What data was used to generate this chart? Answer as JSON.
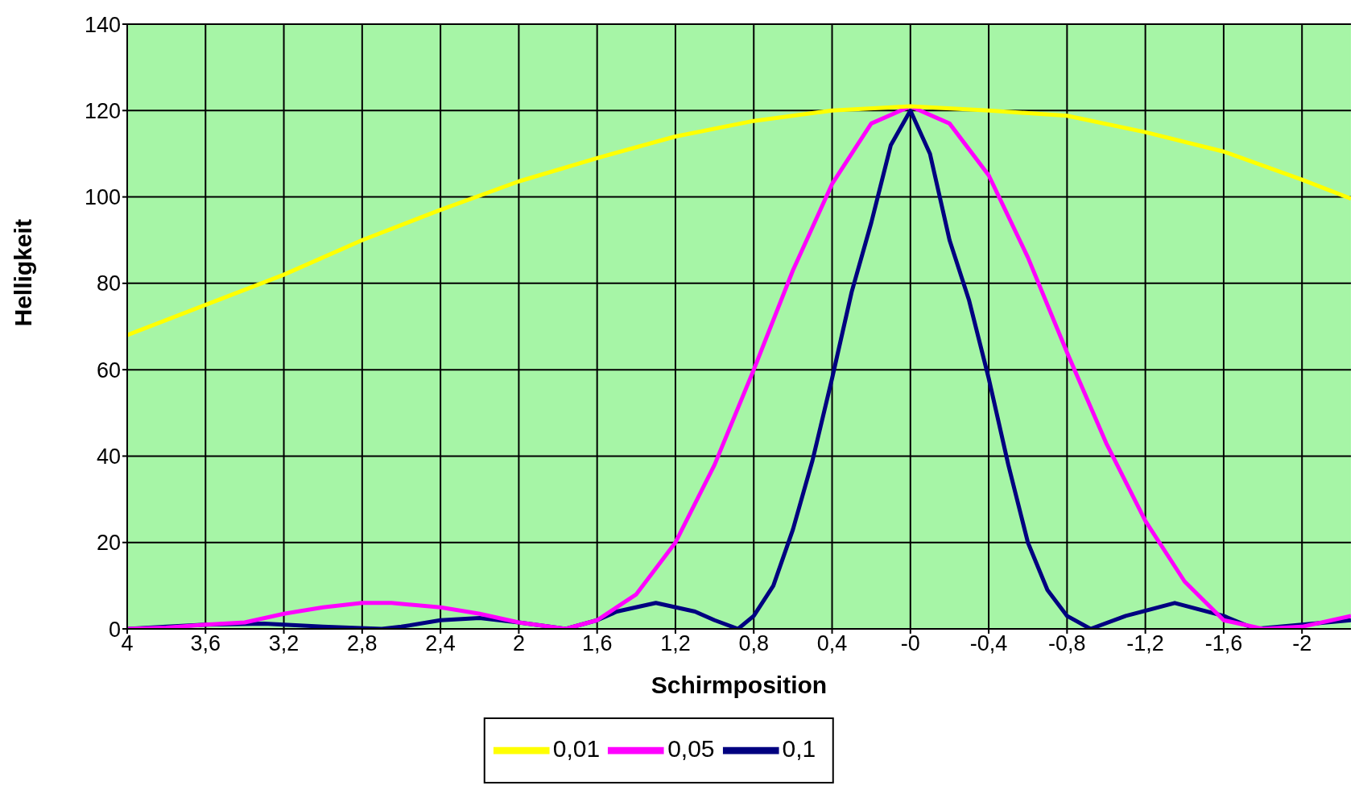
{
  "chart_data": {
    "type": "line",
    "xlabel": "Schirmposition",
    "ylabel": "Helligkeit",
    "xlim": [
      4,
      -2.25
    ],
    "ylim": [
      0,
      140
    ],
    "xticks": [
      4,
      {
        "value": 3.6,
        "label": "3,6"
      },
      {
        "value": 3.2,
        "label": "3,2"
      },
      {
        "value": 2.8,
        "label": "2,8"
      },
      {
        "value": 2.4,
        "label": "2,4"
      },
      2,
      {
        "value": 1.6,
        "label": "1,6"
      },
      {
        "value": 1.2,
        "label": "1,2"
      },
      {
        "value": 0.8,
        "label": "0,8"
      },
      {
        "value": 0.4,
        "label": "0,4"
      },
      {
        "value": 0,
        "label": "-0"
      },
      {
        "value": -0.4,
        "label": "-0,4"
      },
      {
        "value": -0.8,
        "label": "-0,8"
      },
      {
        "value": -1.2,
        "label": "-1,2"
      },
      {
        "value": -1.6,
        "label": "-1,6"
      },
      -2
    ],
    "yticks": [
      0,
      20,
      40,
      60,
      80,
      100,
      120,
      140
    ],
    "grid": true,
    "legend": "bottom",
    "marker": "none",
    "line_style": "solid",
    "series": [
      {
        "name": "0,1",
        "color": "#000080",
        "x": [
          4,
          3.8,
          3.6,
          3.3,
          3,
          2.7,
          2.6,
          2.4,
          2.2,
          2,
          1.76,
          1.6,
          1.5,
          1.3,
          1.1,
          1,
          0.88,
          0.8,
          0.7,
          0.6,
          0.5,
          0.4,
          0.3,
          0.2,
          0.1,
          0,
          -0.1,
          -0.2,
          -0.3,
          -0.4,
          -0.5,
          -0.6,
          -0.7,
          -0.8,
          -0.92,
          -1.1,
          -1.35,
          -1.6,
          -1.76,
          -2,
          -2.25
        ],
        "values": [
          0,
          0.5,
          1,
          1.2,
          0.5,
          0,
          0.5,
          2,
          2.5,
          1.5,
          0,
          2,
          4,
          6,
          4,
          2,
          0,
          3,
          10,
          23,
          39,
          58,
          78,
          94,
          112,
          120,
          110,
          90,
          76,
          58,
          38,
          20,
          9,
          3,
          0,
          3,
          6,
          3,
          0,
          1,
          2
        ]
      },
      {
        "name": "0,05",
        "color": "#ff00ff",
        "x": [
          4,
          3.8,
          3.6,
          3.4,
          3.2,
          3,
          2.8,
          2.65,
          2.4,
          2.2,
          2,
          1.76,
          1.6,
          1.4,
          1.2,
          1,
          0.8,
          0.6,
          0.4,
          0.2,
          0,
          -0.2,
          -0.4,
          -0.6,
          -0.8,
          -1,
          -1.2,
          -1.4,
          -1.6,
          -1.8,
          -2,
          -2.25
        ],
        "values": [
          0,
          0.3,
          1,
          1.5,
          3.5,
          5,
          6,
          6,
          5,
          3.5,
          1.5,
          0,
          2,
          8,
          20,
          38,
          60,
          83,
          103,
          117,
          121,
          117,
          105,
          86,
          64,
          43,
          25,
          11,
          2,
          0,
          0.5,
          3
        ]
      },
      {
        "name": "0,01",
        "color": "#ffff00",
        "x": [
          4,
          3.6,
          3.2,
          2.8,
          2.4,
          2,
          1.6,
          1.2,
          0.8,
          0.4,
          0,
          -0.4,
          -0.8,
          -1.2,
          -1.6,
          -2,
          -2.25
        ],
        "values": [
          68,
          75,
          82,
          90,
          97,
          103.6,
          109,
          114,
          117.6,
          120,
          121,
          120,
          118.8,
          115,
          110.5,
          104,
          99.6
        ]
      }
    ]
  }
}
